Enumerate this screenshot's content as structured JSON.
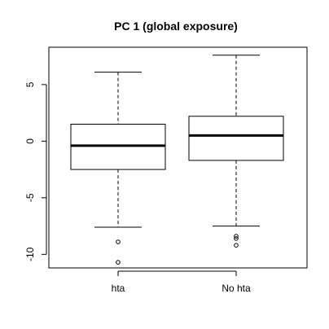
{
  "chart_data": {
    "type": "boxplot",
    "title": "PC 1 (global exposure)",
    "xlabel": "",
    "ylabel": "",
    "ylim": [
      -11.2,
      8.3
    ],
    "y_ticks": [
      5,
      0,
      -5,
      -10
    ],
    "y_tick_labels": [
      "5",
      "0",
      "-5",
      "-10"
    ],
    "categories": [
      "hta",
      "No hta"
    ],
    "boxes": [
      {
        "category": "hta",
        "whisker_low": -7.6,
        "q1": -2.5,
        "median": -0.4,
        "q3": 1.5,
        "whisker_high": 6.1,
        "outliers": [
          -8.9,
          -10.7
        ]
      },
      {
        "category": "No hta",
        "whisker_low": -7.5,
        "q1": -1.7,
        "median": 0.5,
        "q3": 2.2,
        "whisker_high": 7.6,
        "outliers": [
          -8.4,
          -8.6,
          -9.2
        ]
      }
    ],
    "grid": false,
    "colors": {
      "line": "#000000",
      "background": "#ffffff"
    }
  }
}
